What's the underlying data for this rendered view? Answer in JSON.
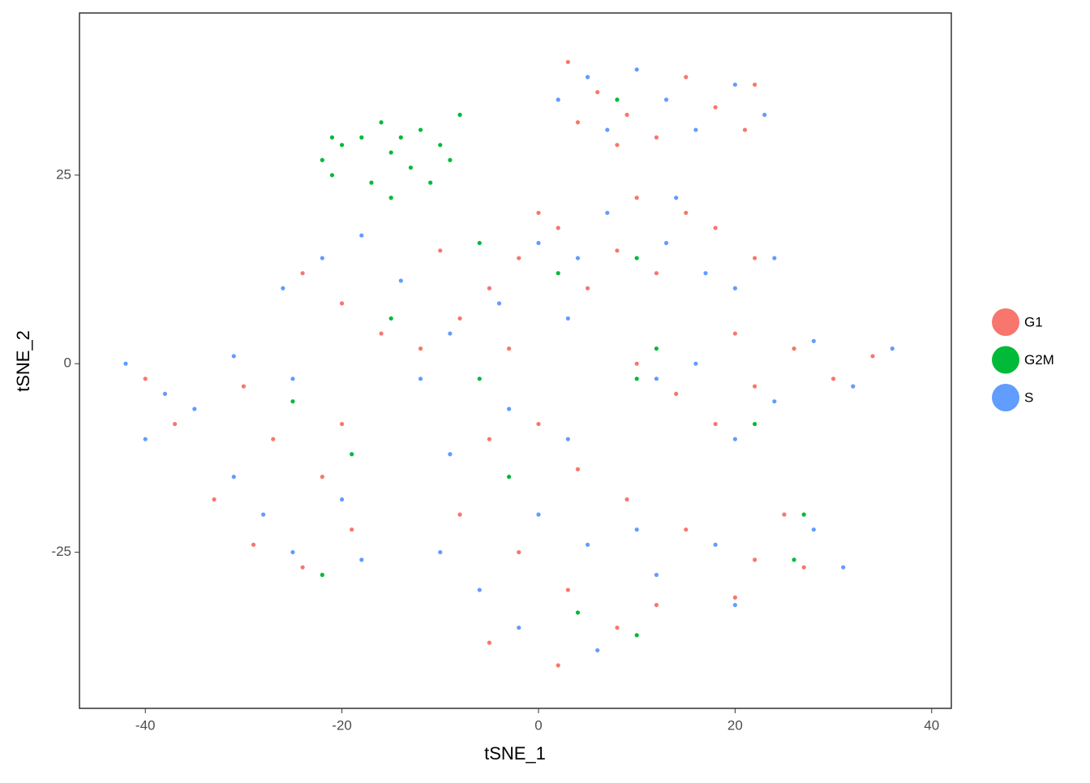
{
  "chart_data": {
    "type": "scatter",
    "x_label": "tSNE_1",
    "y_label": "tSNE_2",
    "xlim": [
      -46.7,
      42.0
    ],
    "ylim": [
      -45.7,
      46.5
    ],
    "xticks": [
      -40,
      -20,
      0,
      20,
      40
    ],
    "yticks": [
      -25,
      0,
      25
    ],
    "grid": false,
    "legend": "right",
    "series": [
      {
        "name": "G1",
        "color": "#f8766d",
        "x": [
          3,
          6,
          9,
          12,
          15,
          18,
          21,
          22,
          8,
          4,
          -24,
          -20,
          -16,
          -12,
          -8,
          -5,
          -2,
          2,
          5,
          8,
          12,
          15,
          18,
          22,
          -10,
          -3,
          0,
          10,
          10,
          14,
          18,
          22,
          26,
          30,
          34,
          20,
          -40,
          -37,
          -30,
          -27,
          -22,
          -33,
          -29,
          -24,
          -19,
          -20,
          -5,
          0,
          4,
          -8,
          -2,
          3,
          -5,
          2,
          8,
          12,
          9,
          15,
          22,
          27,
          25,
          20
        ],
        "values": [
          40,
          36,
          33,
          30,
          38,
          34,
          31,
          37,
          29,
          32,
          12,
          8,
          4,
          2,
          6,
          10,
          14,
          18,
          10,
          15,
          12,
          20,
          18,
          14,
          15,
          2,
          20,
          22,
          0,
          -4,
          -8,
          -3,
          2,
          -2,
          1,
          4,
          -2,
          -8,
          -3,
          -10,
          -15,
          -18,
          -24,
          -27,
          -22,
          -8,
          -10,
          -8,
          -14,
          -20,
          -25,
          -30,
          -37,
          -40,
          -35,
          -32,
          -18,
          -22,
          -26,
          -27,
          -20,
          -31
        ]
      },
      {
        "name": "G2M",
        "color": "#00ba38",
        "x": [
          -21,
          -22,
          -20,
          -21,
          -16,
          -14,
          -15,
          -12,
          -10,
          -8,
          -13,
          -17,
          -11,
          -15,
          -9,
          -18,
          -6,
          -15,
          -6,
          2,
          10,
          10,
          12,
          22,
          -25,
          -19,
          -22,
          -3,
          4,
          10,
          27,
          26,
          8
        ],
        "values": [
          30,
          27,
          29,
          25,
          32,
          30,
          28,
          31,
          29,
          33,
          26,
          24,
          24,
          22,
          27,
          30,
          16,
          6,
          -2,
          12,
          14,
          -2,
          2,
          -8,
          -5,
          -12,
          -28,
          -15,
          -33,
          -36,
          -20,
          -26,
          35
        ]
      },
      {
        "name": "S",
        "color": "#619cff",
        "x": [
          5,
          10,
          13,
          16,
          20,
          23,
          2,
          7,
          -26,
          -22,
          -18,
          -14,
          -9,
          -4,
          0,
          4,
          7,
          13,
          17,
          24,
          -12,
          3,
          14,
          20,
          12,
          16,
          24,
          28,
          32,
          36,
          20,
          -42,
          -38,
          -40,
          -35,
          -31,
          -25,
          -31,
          -28,
          -25,
          -20,
          -18,
          -9,
          -3,
          3,
          -10,
          -6,
          0,
          5,
          -2,
          6,
          12,
          18,
          28,
          31,
          10,
          20
        ],
        "values": [
          38,
          39,
          35,
          31,
          37,
          33,
          35,
          31,
          10,
          14,
          17,
          11,
          4,
          8,
          16,
          14,
          20,
          16,
          12,
          14,
          -2,
          6,
          22,
          10,
          -2,
          0,
          -5,
          3,
          -3,
          2,
          -10,
          0,
          -4,
          -10,
          -6,
          1,
          -2,
          -15,
          -20,
          -25,
          -18,
          -26,
          -12,
          -6,
          -10,
          -25,
          -30,
          -20,
          -24,
          -35,
          -38,
          -28,
          -24,
          -22,
          -27,
          -22,
          -32
        ]
      }
    ]
  }
}
